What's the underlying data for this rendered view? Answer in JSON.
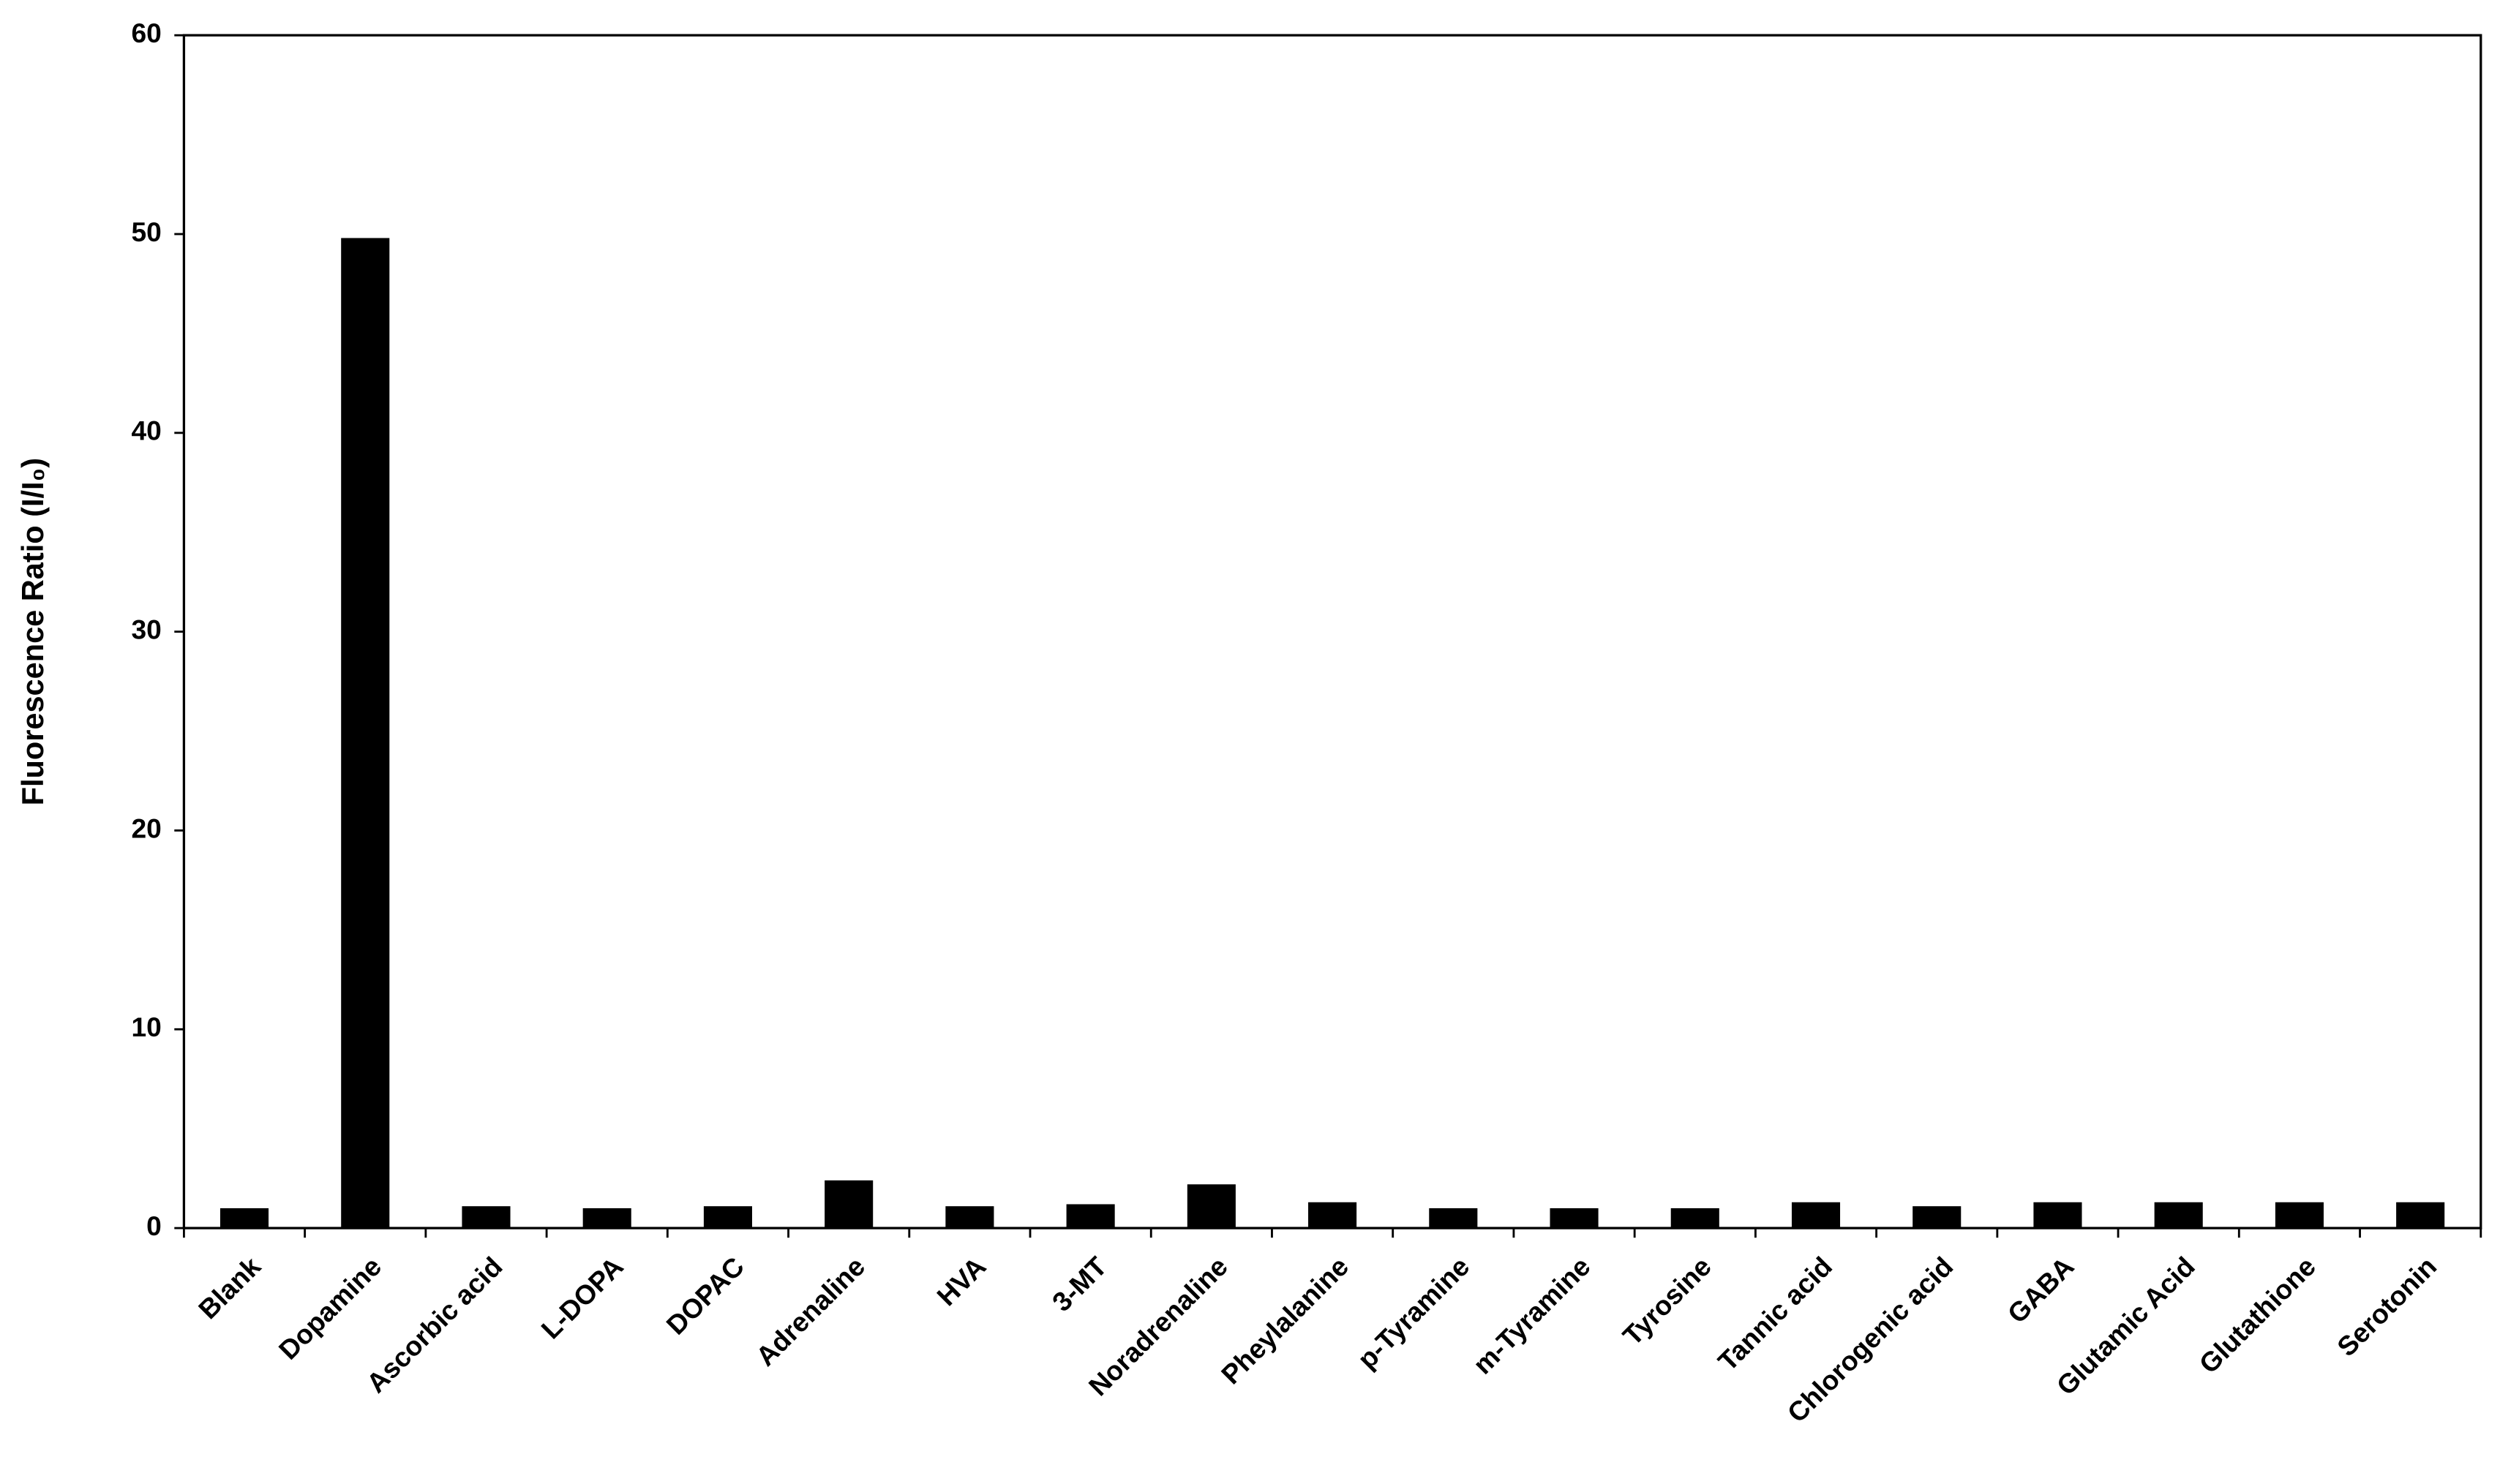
{
  "chart_data": {
    "type": "bar",
    "y_label": "Fluorescence Ratio (I/I₀)",
    "categories": [
      "Blank",
      "Dopamine",
      "Ascorbic acid",
      "L-DOPA",
      "DOPAC",
      "Adrenaline",
      "HVA",
      "3-MT",
      "Noradrenaline",
      "Pheylalanine",
      "p-Tyramine",
      "m-Tyramine",
      "Tyrosine",
      "Tannic acid",
      "Chlorogenic acid",
      "GABA",
      "Glutamic Acid",
      "Glutathione",
      "Serotonin"
    ],
    "values": [
      1.0,
      49.8,
      1.1,
      1.0,
      1.1,
      2.4,
      1.1,
      1.2,
      2.2,
      1.3,
      1.0,
      1.0,
      1.0,
      1.3,
      1.1,
      1.3,
      1.3,
      1.3,
      1.3
    ],
    "color": "#000000",
    "ylim": [
      0,
      60
    ],
    "yticks": [
      0,
      10,
      20,
      30,
      40,
      50,
      60
    ],
    "grid": false
  }
}
